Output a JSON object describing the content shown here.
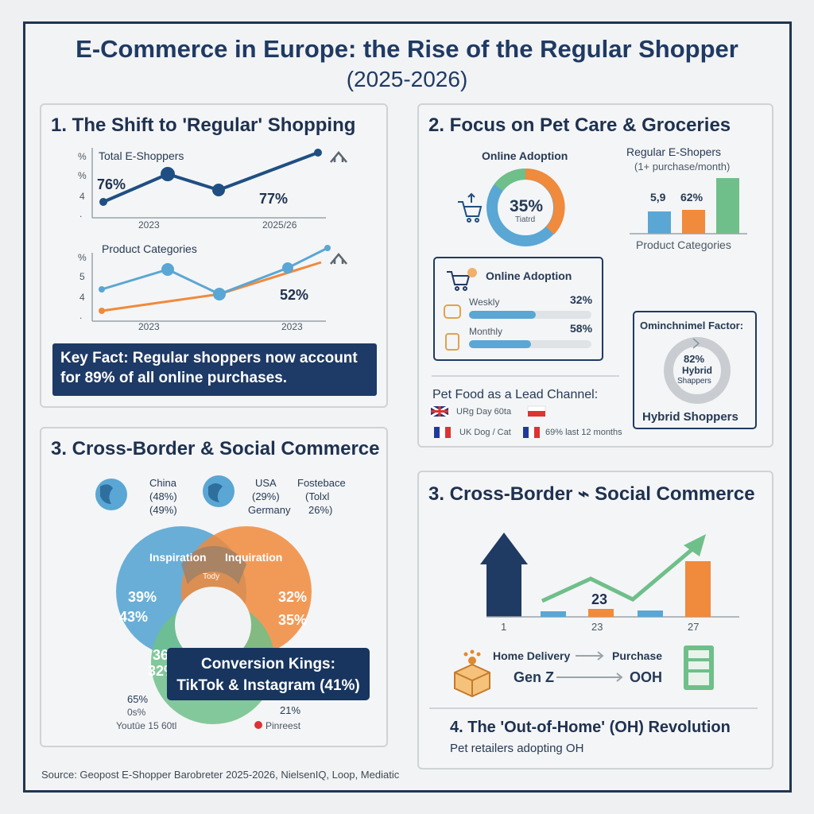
{
  "title": "E-Commerce in Europe: the Rise of the Regular Shopper",
  "subtitle": "(2025-2026)",
  "colors": {
    "navy": "#1f3a63",
    "blue": "#5aa6d4",
    "orange": "#f08a3c",
    "green": "#6fbf8a"
  },
  "section1": {
    "title": "1. The Shift to 'Regular' Shopping",
    "chart1": {
      "label": "Total E-Shoppers",
      "axis": [
        "%",
        "%",
        "4",
        "."
      ],
      "value_a": "76%",
      "value_b": "77%",
      "x_a": "2023",
      "x_b": "2025/26"
    },
    "chart2": {
      "label": "Product Categories",
      "axis": [
        "%",
        "5",
        "4",
        "."
      ],
      "value": "52%",
      "x_a": "2023",
      "x_b": "2023"
    },
    "key_fact": "Key Fact: Regular shoppers now account for 89% of all online purchases."
  },
  "section2": {
    "title": "2. Focus on Pet Care & Groceries",
    "donut": {
      "title": "Online Adoption",
      "value": "35%",
      "sub": "Tiatrd"
    },
    "bars": {
      "title": "Regular E-Shopers",
      "subtitle": "(1+ purchase/month)",
      "label_a": "5,9",
      "label_b": "62%",
      "caption": "Product Categories"
    },
    "adoption": {
      "title": "Online Adoption",
      "rows": [
        {
          "label": "Weskly",
          "value": "32%",
          "fill": 0.32
        },
        {
          "label": "Monthly",
          "value": "58%",
          "fill": 0.58
        }
      ]
    },
    "pet_food": {
      "title": "Pet Food as a Lead Channel:",
      "row1": "URg Day 60ta",
      "row2a": "UK Dog / Cat",
      "row2b": "69% last 12 months"
    },
    "omni": {
      "title": "Ominchnimel Factor:",
      "value": "82%",
      "l1": "Hybrid",
      "l2": "Shappers",
      "caption": "Hybrid Shoppers"
    }
  },
  "section3": {
    "title": "3. Cross-Border & Social Commerce",
    "countries": [
      {
        "name": "China",
        "v1": "(48%)",
        "v2": "(49%)"
      },
      {
        "name": "USA",
        "v1": "(29%)",
        "v2": "Germany"
      },
      {
        "name": "Fostebace",
        "v1": "(Tolxl",
        "v2": "26%)"
      }
    ],
    "venn": {
      "left_title": "Inspiration",
      "right_title": "Inquiration",
      "center": "Tody",
      "l1": "39%",
      "l2": "43%",
      "r1": "32%",
      "r2": "35%",
      "b1": "36",
      "b2": "32%"
    },
    "conversion": {
      "line1": "Conversion Kings:",
      "line2": "TikTok & Instagram (41%)"
    },
    "youtube": {
      "v1": "65%",
      "v2": "0s%",
      "label": "Youtūe 15 60tl"
    },
    "pinterest": {
      "value": "21%",
      "label": "Pinreest"
    }
  },
  "section4": {
    "title": "3. Cross-Border ⌁ Social Commerce",
    "chart": {
      "label_mid": "23",
      "x": [
        "1",
        "23",
        "27"
      ]
    },
    "flow": {
      "a": "Home Delivery",
      "b": "Purchase",
      "c": "Gen Z",
      "d": "OOH"
    },
    "oh_title": "4. The 'Out-of-Home' (OH) Revolution",
    "oh_sub": "Pet retailers adopting OH"
  },
  "source": "Source: Geopost E-Shopper Barobreter 2025-2026, NielsenIQ, Loop, Mediatic"
}
